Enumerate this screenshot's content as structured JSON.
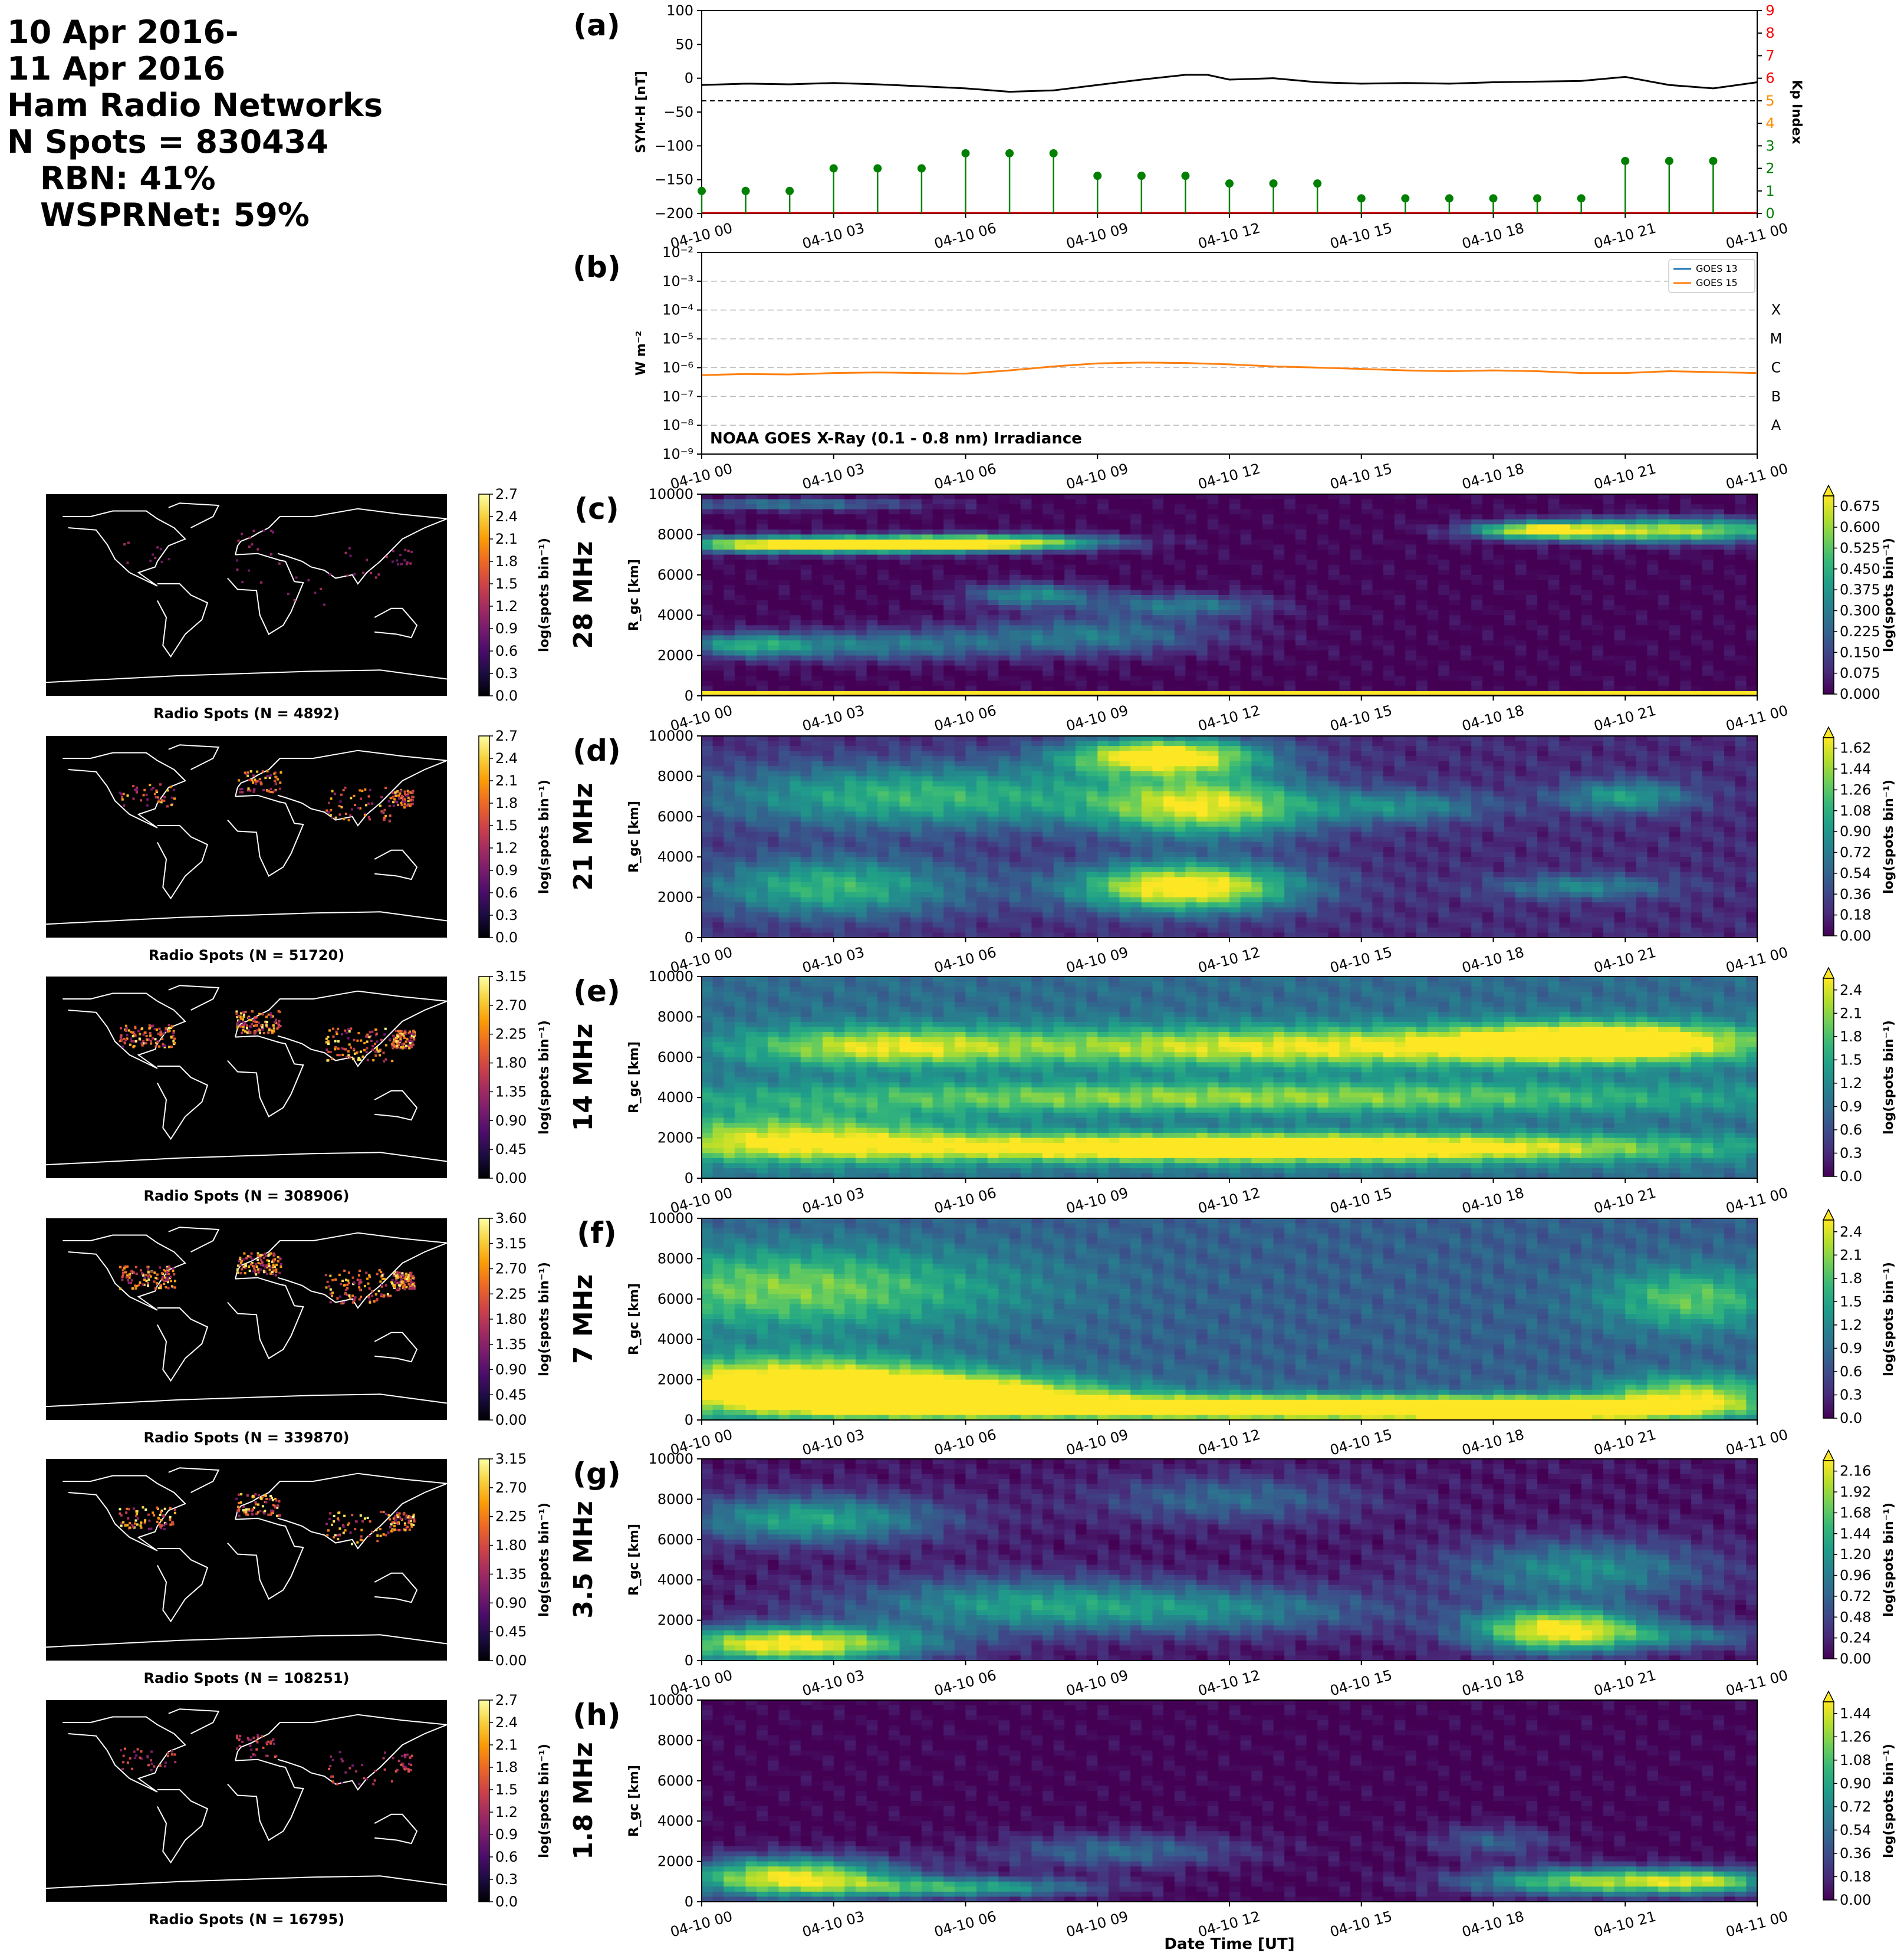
{
  "header": {
    "line1": "10 Apr 2016-",
    "line2": "11 Apr 2016",
    "line3": "Ham Radio Networks",
    "line4": "N Spots = 830434",
    "line5": "RBN: 41%",
    "line6": "WSPRNet: 59%"
  },
  "time_ticks": [
    "04-10 00",
    "04-10 03",
    "04-10 06",
    "04-10 09",
    "04-10 12",
    "04-10 15",
    "04-10 18",
    "04-10 21",
    "04-11 00"
  ],
  "xlabel": "Date Time [UT]",
  "chart_data": [
    {
      "panel": "(a)",
      "type": "line",
      "ylabel": "SYM-H [nT]",
      "y2label": "Kp Index",
      "ylim": [
        -200,
        100
      ],
      "yticks": [
        100,
        50,
        0,
        -50,
        -100,
        -150,
        -200
      ],
      "y2lim": [
        0,
        9
      ],
      "y2ticks": [
        0,
        1,
        2,
        3,
        4,
        5,
        6,
        7,
        8,
        9
      ],
      "y2tick_colors": [
        "#008000",
        "#008000",
        "#008000",
        "#008000",
        "#ff8c00",
        "#ff8c00",
        "#ff0000",
        "#ff0000",
        "#ff0000",
        "#ff0000"
      ],
      "reference_line": 5,
      "symh": {
        "x_hours": [
          0,
          1,
          2,
          3,
          4,
          5,
          6,
          7,
          8,
          9,
          10,
          11,
          11.5,
          12,
          13,
          14,
          15,
          16,
          17,
          18,
          19,
          20,
          21,
          22,
          23,
          24
        ],
        "values": [
          -10,
          -8,
          -9,
          -7,
          -9,
          -12,
          -15,
          -20,
          -18,
          -10,
          -2,
          5,
          5,
          -2,
          0,
          -6,
          -8,
          -7,
          -8,
          -6,
          -5,
          -4,
          2,
          -10,
          -15,
          -6
        ]
      },
      "kp": {
        "x_hours": [
          0,
          1.5,
          3,
          4.5,
          6,
          7.5,
          9,
          10.5,
          12,
          13.5,
          15,
          16.5,
          18,
          19.5,
          21,
          22.5,
          24,
          25.5,
          27,
          28.5,
          30,
          31.5,
          33,
          34.5
        ],
        "x_display_hours": [
          0,
          1,
          2,
          3,
          4,
          5,
          6,
          7,
          8,
          9,
          10,
          11,
          12,
          13,
          14,
          15,
          16,
          17,
          18,
          19,
          20,
          21,
          22,
          23
        ],
        "values": [
          1,
          1,
          1,
          2,
          2,
          2,
          2.67,
          2.67,
          2.67,
          1.67,
          1.67,
          1.67,
          1.33,
          1.33,
          1.33,
          0.67,
          0.67,
          0.67,
          0.67,
          0.67,
          0.67,
          2.33,
          2.33,
          2.33
        ],
        "color": "#008000"
      }
    },
    {
      "panel": "(b)",
      "type": "line",
      "ylabel": "W m⁻²",
      "yscale": "log",
      "ylim": [
        1e-09,
        0.01
      ],
      "ytick_labels": [
        "10⁻²",
        "10⁻³",
        "10⁻⁴",
        "10⁻⁵",
        "10⁻⁶",
        "10⁻⁷",
        "10⁻⁸",
        "10⁻⁹"
      ],
      "class_labels": [
        "X",
        "M",
        "C",
        "B",
        "A"
      ],
      "annotation": "NOAA GOES X-Ray (0.1 - 0.8 nm) Irradiance",
      "series": [
        {
          "name": "GOES 13",
          "color": "#1f77b4",
          "x_hours": [
            0,
            1,
            2,
            3,
            4,
            5,
            6,
            7,
            8,
            9,
            10,
            11,
            12,
            13,
            14,
            15,
            16,
            17,
            18,
            19,
            20,
            21,
            22,
            23,
            24
          ],
          "values": [
            5.5e-07,
            6e-07,
            5.8e-07,
            6.5e-07,
            6.8e-07,
            6.5e-07,
            6.2e-07,
            8e-07,
            1.1e-06,
            1.4e-06,
            1.5e-06,
            1.4e-06,
            1.3e-06,
            1.1e-06,
            1e-06,
            9e-07,
            8e-07,
            7.5e-07,
            8e-07,
            7.5e-07,
            6.5e-07,
            6.5e-07,
            7.5e-07,
            7e-07,
            6.5e-07
          ]
        },
        {
          "name": "GOES 15",
          "color": "#ff7f0e",
          "x_hours": [
            0,
            1,
            2,
            3,
            4,
            5,
            6,
            7,
            8,
            9,
            10,
            11,
            12,
            13,
            14,
            15,
            16,
            17,
            18,
            19,
            20,
            21,
            22,
            23,
            24
          ],
          "values": [
            5.5e-07,
            6e-07,
            5.8e-07,
            6.5e-07,
            6.8e-07,
            6.5e-07,
            6.2e-07,
            8e-07,
            1.1e-06,
            1.4e-06,
            1.5e-06,
            1.45e-06,
            1.3e-06,
            1.1e-06,
            1e-06,
            9e-07,
            8e-07,
            7.5e-07,
            8e-07,
            7.5e-07,
            6.5e-07,
            6.5e-07,
            7.5e-07,
            7e-07,
            6.5e-07
          ]
        }
      ]
    },
    {
      "panel": "(c)",
      "type": "heatmap",
      "band": "28 MHz",
      "ylabel": "R_gc [km]",
      "ylim": [
        0,
        10000
      ],
      "yticks": [
        0,
        2000,
        4000,
        6000,
        8000,
        10000
      ],
      "colorbar_label": "log(spots bin⁻¹)",
      "colorbar_ticks": [
        "0.000",
        "0.075",
        "0.150",
        "0.225",
        "0.300",
        "0.375",
        "0.450",
        "0.525",
        "0.600",
        "0.675"
      ],
      "map_caption": "Radio Spots (N = 4892)",
      "map_colorbar_ticks": [
        "0.0",
        "0.3",
        "0.6",
        "0.9",
        "1.2",
        "1.5",
        "1.8",
        "2.1",
        "2.4",
        "2.7"
      ],
      "blobs": [
        [
          1.5,
          7500,
          2.5,
          400,
          0.9
        ],
        [
          4.5,
          7500,
          2.5,
          400,
          0.9
        ],
        [
          7,
          7600,
          2.5,
          400,
          0.8
        ],
        [
          7.5,
          5000,
          1.5,
          600,
          0.5
        ],
        [
          9,
          3000,
          3,
          1000,
          0.4
        ],
        [
          4,
          2500,
          3,
          800,
          0.4
        ],
        [
          22,
          8200,
          3,
          600,
          0.9
        ],
        [
          19,
          8200,
          1.5,
          400,
          0.8
        ],
        [
          1,
          2500,
          1.5,
          600,
          0.5
        ],
        [
          11,
          4500,
          2,
          600,
          0.4
        ],
        [
          2,
          9500,
          3,
          300,
          0.4
        ]
      ],
      "base": 0.0,
      "bottom_line": true
    },
    {
      "panel": "(d)",
      "type": "heatmap",
      "band": "21 MHz",
      "ylabel": "R_gc [km]",
      "ylim": [
        0,
        10000
      ],
      "yticks": [
        0,
        2000,
        4000,
        6000,
        8000,
        10000
      ],
      "colorbar_label": "log(spots bin⁻¹)",
      "colorbar_ticks": [
        "0.00",
        "0.18",
        "0.36",
        "0.54",
        "0.72",
        "0.90",
        "1.08",
        "1.26",
        "1.44",
        "1.62"
      ],
      "map_caption": "Radio Spots (N = 51720)",
      "map_colorbar_ticks": [
        "0.0",
        "0.3",
        "0.6",
        "0.9",
        "1.2",
        "1.5",
        "1.8",
        "2.1",
        "2.4",
        "2.7"
      ],
      "blobs": [
        [
          10.5,
          9000,
          2.2,
          900,
          1.0
        ],
        [
          11,
          2500,
          2.5,
          1200,
          1.0
        ],
        [
          11.5,
          6500,
          2.5,
          1500,
          0.8
        ],
        [
          5,
          7000,
          5,
          1600,
          0.55
        ],
        [
          3,
          2500,
          3,
          1500,
          0.55
        ],
        [
          21,
          7000,
          1.5,
          800,
          0.45
        ],
        [
          16,
          6500,
          2,
          800,
          0.35
        ],
        [
          20,
          2500,
          2,
          600,
          0.35
        ]
      ],
      "base": 0.12
    },
    {
      "panel": "(e)",
      "type": "heatmap",
      "band": "14 MHz",
      "ylabel": "R_gc [km]",
      "ylim": [
        0,
        10000
      ],
      "yticks": [
        0,
        2000,
        4000,
        6000,
        8000,
        10000
      ],
      "colorbar_label": "log(spots bin⁻¹)",
      "colorbar_ticks": [
        "0.0",
        "0.3",
        "0.6",
        "0.9",
        "1.2",
        "1.5",
        "1.8",
        "2.1",
        "2.4"
      ],
      "map_caption": "Radio Spots (N = 308906)",
      "map_colorbar_ticks": [
        "0.00",
        "0.45",
        "0.90",
        "1.35",
        "1.80",
        "2.25",
        "2.70",
        "3.15"
      ],
      "blobs": [
        [
          13,
          1500,
          9,
          700,
          1.0
        ],
        [
          2,
          2000,
          4,
          1200,
          0.55
        ],
        [
          14,
          6500,
          9,
          1000,
          0.65
        ],
        [
          20.5,
          6800,
          3,
          900,
          0.8
        ],
        [
          4,
          6500,
          3,
          1000,
          0.45
        ],
        [
          12,
          4000,
          12,
          800,
          0.5
        ]
      ],
      "base": 0.35
    },
    {
      "panel": "(f)",
      "type": "heatmap",
      "band": "7 MHz",
      "ylabel": "R_gc [km]",
      "ylim": [
        0,
        10000
      ],
      "yticks": [
        0,
        2000,
        4000,
        6000,
        8000,
        10000
      ],
      "colorbar_label": "log(spots bin⁻¹)",
      "colorbar_ticks": [
        "0.0",
        "0.3",
        "0.6",
        "0.9",
        "1.2",
        "1.5",
        "1.8",
        "2.1",
        "2.4"
      ],
      "map_caption": "Radio Spots (N = 339870)",
      "map_colorbar_ticks": [
        "0.00",
        "0.45",
        "0.90",
        "1.35",
        "1.80",
        "2.25",
        "2.70",
        "3.15",
        "3.60"
      ],
      "blobs": [
        [
          5,
          1200,
          4,
          900,
          1.0
        ],
        [
          13,
          600,
          7,
          600,
          1.0
        ],
        [
          19,
          500,
          3,
          500,
          1.0
        ],
        [
          2,
          1800,
          4,
          1400,
          0.8
        ],
        [
          2,
          6500,
          5,
          2000,
          0.5
        ],
        [
          22.5,
          6000,
          2,
          1500,
          0.45
        ],
        [
          22.5,
          1200,
          2,
          1000,
          0.6
        ]
      ],
      "base": 0.3
    },
    {
      "panel": "(g)",
      "type": "heatmap",
      "band": "3.5 MHz",
      "ylabel": "R_gc [km]",
      "ylim": [
        0,
        10000
      ],
      "yticks": [
        0,
        2000,
        4000,
        6000,
        8000,
        10000
      ],
      "colorbar_label": "log(spots bin⁻¹)",
      "colorbar_ticks": [
        "0.00",
        "0.24",
        "0.48",
        "0.72",
        "0.96",
        "1.20",
        "1.44",
        "1.68",
        "1.92",
        "2.16"
      ],
      "map_caption": "Radio Spots (N = 108251)",
      "map_colorbar_ticks": [
        "0.00",
        "0.45",
        "0.90",
        "1.35",
        "1.80",
        "2.25",
        "2.70",
        "3.15"
      ],
      "blobs": [
        [
          2,
          800,
          3,
          900,
          1.0
        ],
        [
          19.5,
          1500,
          2,
          1100,
          1.0
        ],
        [
          2.5,
          7000,
          3,
          1200,
          0.55
        ],
        [
          7,
          2800,
          4,
          1400,
          0.45
        ],
        [
          12,
          2500,
          4,
          1200,
          0.35
        ],
        [
          20,
          4500,
          3,
          1500,
          0.45
        ],
        [
          22.5,
          1200,
          2,
          600,
          0.3
        ],
        [
          12,
          8000,
          3,
          1200,
          0.3
        ]
      ],
      "base": 0.05
    },
    {
      "panel": "(h)",
      "type": "heatmap",
      "band": "1.8 MHz",
      "ylabel": "R_gc [km]",
      "ylim": [
        0,
        10000
      ],
      "yticks": [
        0,
        2000,
        4000,
        6000,
        8000,
        10000
      ],
      "colorbar_label": "log(spots bin⁻¹)",
      "colorbar_ticks": [
        "0.00",
        "0.18",
        "0.36",
        "0.54",
        "0.72",
        "0.90",
        "1.08",
        "1.26",
        "1.44"
      ],
      "map_caption": "Radio Spots (N = 16795)",
      "map_colorbar_ticks": [
        "0.0",
        "0.3",
        "0.6",
        "0.9",
        "1.2",
        "1.5",
        "1.8",
        "2.1",
        "2.4",
        "2.7"
      ],
      "blobs": [
        [
          2,
          1200,
          2.5,
          1000,
          1.0
        ],
        [
          6,
          700,
          3,
          500,
          0.6
        ],
        [
          9.5,
          2500,
          3,
          900,
          0.35
        ],
        [
          20.5,
          1000,
          3,
          700,
          0.85
        ],
        [
          23,
          1000,
          1.5,
          600,
          0.5
        ],
        [
          18,
          3000,
          1.5,
          800,
          0.3
        ]
      ],
      "base": 0.0
    }
  ]
}
